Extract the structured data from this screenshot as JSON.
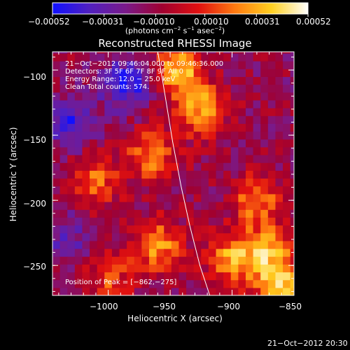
{
  "colorbar": {
    "ticks": [
      "−0.00052",
      "−0.00031",
      "−0.00010",
      "0.00010",
      "0.00031",
      "0.00052"
    ],
    "units_main": "(photons cm",
    "units_sup1": "−2",
    "units_mid1": " s",
    "units_sup2": "−1",
    "units_mid2": " asec",
    "units_sup3": "−2",
    "units_end": ")",
    "colors": [
      "#1010ff",
      "#5020c0",
      "#7a1a8a",
      "#a00030",
      "#e01010",
      "#ff7a10",
      "#ffd020",
      "#ffffff"
    ]
  },
  "plot": {
    "title": "Reconstructed RHESSI Image",
    "xlabel": "Heliocentric X (arcsec)",
    "ylabel": "Heliocentric Y (arcsec)",
    "overlay": [
      "21−Oct−2012 09:46:04.000 to 09:46:36.000",
      "Detectors: 3F 5F 6F 7F 8F 9F All 0",
      "Energy Range: 12.0 − 25.0 keV",
      "Clean     Total counts: 574."
    ],
    "peak_text": "Position of Peak = [−862,−275]"
  },
  "footer_timestamp": "21−Oct−2012 20:30",
  "chart_data": {
    "type": "heatmap",
    "title": "Reconstructed RHESSI Image",
    "xlabel": "Heliocentric X (arcsec)",
    "ylabel": "Heliocentric Y (arcsec)",
    "xlim": [
      -1045,
      -850
    ],
    "ylim": [
      -273,
      -86
    ],
    "x_ticks": [
      -1000,
      -950,
      -900,
      -850
    ],
    "x_tick_labels": [
      "−1000",
      "−950",
      "−900",
      "−850"
    ],
    "y_ticks": [
      -100,
      -150,
      -200,
      -250
    ],
    "y_tick_labels": [
      "−100",
      "−150",
      "−200",
      "−250"
    ],
    "color_range": [
      -0.00052,
      0.00052
    ],
    "colorbar_ticks": [
      -0.00052,
      -0.00031,
      -0.0001,
      0.0001,
      0.00031,
      0.00052
    ],
    "units": "photons cm^-2 s^-1 asec^-2",
    "peak_position": [
      -862,
      -275
    ],
    "limb_x": [
      -960,
      -954,
      -948,
      -941,
      -934,
      -926,
      -918
    ],
    "limb_y": [
      -86,
      -120,
      -155,
      -190,
      -220,
      -250,
      -273
    ],
    "hot_spots": [
      {
        "x": -943,
        "y": -100,
        "value": 0.00045
      },
      {
        "x": -925,
        "y": -130,
        "value": 0.0004
      },
      {
        "x": -965,
        "y": -165,
        "value": 0.00035
      },
      {
        "x": -1010,
        "y": -185,
        "value": 0.0003
      },
      {
        "x": -880,
        "y": -200,
        "value": 0.00035
      },
      {
        "x": -960,
        "y": -235,
        "value": 0.0004
      },
      {
        "x": -900,
        "y": -245,
        "value": 0.00042
      },
      {
        "x": -870,
        "y": -240,
        "value": 0.0004
      },
      {
        "x": -860,
        "y": -270,
        "value": 0.00052
      },
      {
        "x": -1000,
        "y": -260,
        "value": 0.00025
      }
    ],
    "cold_spots": [
      {
        "x": -1030,
        "y": -140,
        "value": -0.0003
      },
      {
        "x": -985,
        "y": -110,
        "value": -0.00035
      },
      {
        "x": -1035,
        "y": -230,
        "value": -0.0002
      }
    ]
  }
}
